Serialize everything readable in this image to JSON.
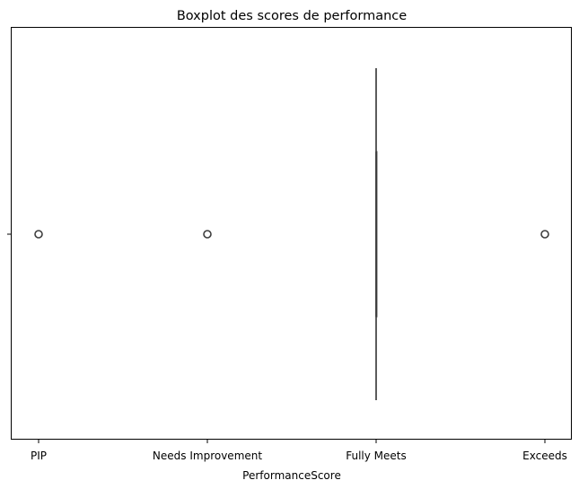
{
  "chart_data": {
    "type": "box",
    "title": "Boxplot des scores de performance",
    "xlabel": "PerformanceScore",
    "ylabel": "",
    "orientation": "horizontal",
    "categories": [
      "PIP",
      "Needs Improvement",
      "Fully Meets",
      "Exceeds"
    ],
    "box": {
      "min": "Fully Meets",
      "q1": "Fully Meets",
      "median": "Fully Meets",
      "q3": "Fully Meets",
      "max": "Fully Meets",
      "outliers": [
        "PIP",
        "Needs Improvement",
        "Exceeds"
      ]
    },
    "grid": false,
    "legend": "none",
    "colors": {
      "box_line": "#3d3d3d",
      "outlier_edge": "#3d3d3d",
      "axes": "#000000"
    }
  }
}
